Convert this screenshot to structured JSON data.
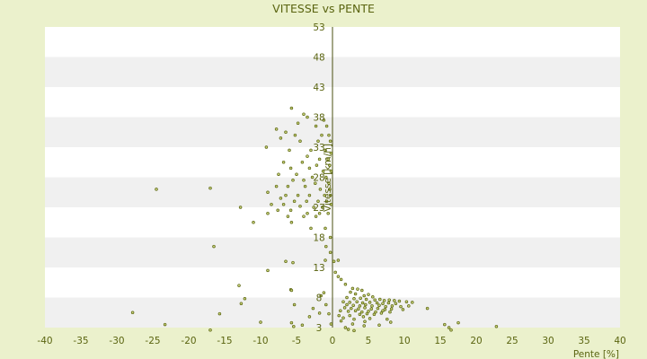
{
  "chart_data": {
    "type": "scatter",
    "title": "VITESSE vs PENTE",
    "xlabel": "Pente [%]",
    "ylabel": "Vitesse [km/h]",
    "xlim": [
      -40,
      40
    ],
    "ylim": [
      3,
      53
    ],
    "xticks": [
      -40,
      -35,
      -30,
      -25,
      -20,
      -15,
      -10,
      -5,
      0,
      5,
      10,
      15,
      20,
      25,
      30,
      35,
      40
    ],
    "yticks": [
      3,
      8,
      13,
      18,
      23,
      28,
      33,
      38,
      43,
      48,
      53
    ],
    "grid": "horizontal bands",
    "legend": "none",
    "colors": {
      "background": "#ebf1cc",
      "band_light": "#ffffff",
      "band_dark": "#f0f0f0",
      "point": "#5a6410",
      "text": "#5a6410",
      "axis": "#4a5010"
    },
    "points": [
      [
        -5.7,
        39.5
      ],
      [
        -4,
        38.5
      ],
      [
        -3.5,
        38
      ],
      [
        -4.8,
        37
      ],
      [
        -2.3,
        36.5
      ],
      [
        -1.2,
        37.5
      ],
      [
        -0.8,
        36.5
      ],
      [
        -7.8,
        36
      ],
      [
        -6.5,
        35.5
      ],
      [
        -5.2,
        35
      ],
      [
        -1.5,
        35
      ],
      [
        -0.5,
        35
      ],
      [
        -7.2,
        34.5
      ],
      [
        -4.5,
        34
      ],
      [
        -2,
        34
      ],
      [
        -0.3,
        34
      ],
      [
        -9.2,
        33
      ],
      [
        -6,
        32.5
      ],
      [
        -3,
        32.5
      ],
      [
        -1,
        32.5
      ],
      [
        -0.2,
        32
      ],
      [
        -3.5,
        31.5
      ],
      [
        -1.8,
        31
      ],
      [
        -0.6,
        31
      ],
      [
        -6.8,
        30.5
      ],
      [
        -4.2,
        30.5
      ],
      [
        -2.2,
        30
      ],
      [
        -0.4,
        30
      ],
      [
        -5.8,
        29.5
      ],
      [
        -3.2,
        29.5
      ],
      [
        -1.3,
        29
      ],
      [
        -0.2,
        29
      ],
      [
        -7.5,
        28.5
      ],
      [
        -5,
        28.5
      ],
      [
        -2.8,
        28
      ],
      [
        -0.9,
        28
      ],
      [
        -5.5,
        27.5
      ],
      [
        -4,
        27.5
      ],
      [
        -2.4,
        27
      ],
      [
        -0.5,
        27
      ],
      [
        -7.8,
        26.5
      ],
      [
        -6.2,
        26.5
      ],
      [
        -3.8,
        26.5
      ],
      [
        -1.7,
        26
      ],
      [
        -0.4,
        26
      ],
      [
        -24.5,
        26
      ],
      [
        -17,
        26.2
      ],
      [
        -9,
        25.5
      ],
      [
        -6.5,
        25
      ],
      [
        -4.8,
        25
      ],
      [
        -3.2,
        25
      ],
      [
        -1.1,
        25
      ],
      [
        -0.3,
        25
      ],
      [
        -7.2,
        24.5
      ],
      [
        -5.3,
        24
      ],
      [
        -3.6,
        24
      ],
      [
        -2,
        24
      ],
      [
        -0.8,
        24
      ],
      [
        -8.5,
        23.5
      ],
      [
        -6.8,
        23.5
      ],
      [
        -4.5,
        23.2
      ],
      [
        -2.6,
        23
      ],
      [
        -1.4,
        23
      ],
      [
        -0.2,
        23.5
      ],
      [
        -12.8,
        23
      ],
      [
        -7.6,
        22.5
      ],
      [
        -5.8,
        22.5
      ],
      [
        -3.5,
        22
      ],
      [
        -1.8,
        22
      ],
      [
        -0.6,
        22
      ],
      [
        -9,
        22
      ],
      [
        -6.2,
        21.5
      ],
      [
        -4,
        21.5
      ],
      [
        -2.3,
        21.5
      ],
      [
        -5.7,
        20.5
      ],
      [
        -11,
        20.5
      ],
      [
        -3,
        19.5
      ],
      [
        -1,
        19.5
      ],
      [
        -0.3,
        18
      ],
      [
        -16.5,
        16.5
      ],
      [
        -0.9,
        16.5
      ],
      [
        -0.3,
        15.5
      ],
      [
        -6.5,
        14
      ],
      [
        -5.5,
        13.8
      ],
      [
        -1,
        14.2
      ],
      [
        0.2,
        14
      ],
      [
        0.8,
        14.2
      ],
      [
        -9,
        12.5
      ],
      [
        0.4,
        12.2
      ],
      [
        0.8,
        11.5
      ],
      [
        1.2,
        11
      ],
      [
        -13,
        10
      ],
      [
        -5.8,
        9.3
      ],
      [
        -5.7,
        9.2
      ],
      [
        -1.2,
        8.8
      ],
      [
        -1.6,
        8.3
      ],
      [
        -12.2,
        7.8
      ],
      [
        -12.7,
        7
      ],
      [
        -5.3,
        6.8
      ],
      [
        -0.9,
        6.8
      ],
      [
        -2.7,
        6.2
      ],
      [
        -27.8,
        5.5
      ],
      [
        -15.7,
        5.3
      ],
      [
        -1.8,
        5.4
      ],
      [
        -3.2,
        4.8
      ],
      [
        -0.5,
        5.3
      ],
      [
        -10,
        3.9
      ],
      [
        -5.7,
        3.8
      ],
      [
        -23.3,
        3.5
      ],
      [
        -5.4,
        3.2
      ],
      [
        -4.2,
        3.4
      ],
      [
        -17,
        2.6
      ],
      [
        -0.2,
        3.6
      ],
      [
        1.8,
        10.2
      ],
      [
        2.8,
        9.5
      ],
      [
        3.5,
        9.4
      ],
      [
        4.1,
        9.2
      ],
      [
        2.5,
        8.9
      ],
      [
        3.2,
        8.6
      ],
      [
        4.4,
        8.3
      ],
      [
        5,
        8.5
      ],
      [
        5.6,
        8.1
      ],
      [
        2,
        8
      ],
      [
        3,
        7.8
      ],
      [
        3.9,
        7.9
      ],
      [
        4.7,
        7.7
      ],
      [
        5.9,
        7.6
      ],
      [
        6.6,
        7.7
      ],
      [
        7.2,
        7.5
      ],
      [
        7.9,
        7.6
      ],
      [
        8.6,
        7.5
      ],
      [
        9.3,
        7.4
      ],
      [
        1.5,
        7.3
      ],
      [
        2.4,
        7.2
      ],
      [
        3.4,
        7.3
      ],
      [
        4.2,
        7.1
      ],
      [
        5.2,
        7.2
      ],
      [
        6.2,
        7.1
      ],
      [
        7,
        7
      ],
      [
        7.8,
        7.1
      ],
      [
        8.8,
        7
      ],
      [
        10.3,
        7.3
      ],
      [
        11.1,
        7.2
      ],
      [
        2,
        6.8
      ],
      [
        2.9,
        6.7
      ],
      [
        3.8,
        6.6
      ],
      [
        4.6,
        6.8
      ],
      [
        5.5,
        6.6
      ],
      [
        6.5,
        6.7
      ],
      [
        7.4,
        6.5
      ],
      [
        8.3,
        6.6
      ],
      [
        9.5,
        6.5
      ],
      [
        10.6,
        6.6
      ],
      [
        13.2,
        6.2
      ],
      [
        1.7,
        6.3
      ],
      [
        2.6,
        6.2
      ],
      [
        3.6,
        6.1
      ],
      [
        4.5,
        6.3
      ],
      [
        5.4,
        6.1
      ],
      [
        6.3,
        6.2
      ],
      [
        7.3,
        6
      ],
      [
        8.2,
        6.1
      ],
      [
        9.8,
        6
      ],
      [
        1.1,
        5.8
      ],
      [
        2.2,
        5.7
      ],
      [
        3.2,
        5.8
      ],
      [
        4.1,
        5.6
      ],
      [
        5,
        5.7
      ],
      [
        6,
        5.6
      ],
      [
        7,
        5.8
      ],
      [
        8,
        5.6
      ],
      [
        3.8,
        5.2
      ],
      [
        4.8,
        5.3
      ],
      [
        5.8,
        5.2
      ],
      [
        6.8,
        5.4
      ],
      [
        0.9,
        5
      ],
      [
        2.4,
        5
      ],
      [
        4.3,
        4.8
      ],
      [
        1.5,
        4.6
      ],
      [
        3,
        4.4
      ],
      [
        5.2,
        4.5
      ],
      [
        7.6,
        4.4
      ],
      [
        1.2,
        4.1
      ],
      [
        4.5,
        4
      ],
      [
        8.1,
        3.9
      ],
      [
        2.8,
        3.6
      ],
      [
        4.4,
        3.3
      ],
      [
        6.5,
        3.4
      ],
      [
        15.6,
        3.5
      ],
      [
        16.2,
        3
      ],
      [
        16.5,
        2.6
      ],
      [
        17.5,
        3.8
      ],
      [
        22.8,
        3.2
      ],
      [
        1.8,
        3
      ],
      [
        2.2,
        2.7
      ],
      [
        3,
        2.5
      ]
    ]
  }
}
